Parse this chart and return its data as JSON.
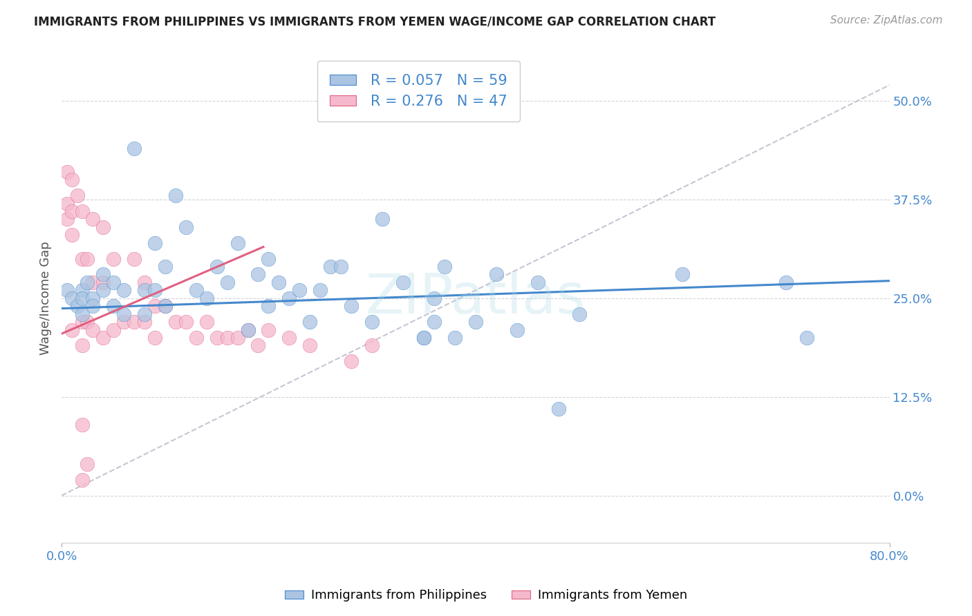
{
  "title": "IMMIGRANTS FROM PHILIPPINES VS IMMIGRANTS FROM YEMEN WAGE/INCOME GAP CORRELATION CHART",
  "source": "Source: ZipAtlas.com",
  "ylabel": "Wage/Income Gap",
  "watermark": "ZIPatlas",
  "R_philippines": 0.057,
  "N_philippines": 59,
  "R_yemen": 0.276,
  "N_yemen": 47,
  "color_philippines": "#aac4e2",
  "color_yemen": "#f5b8cc",
  "line_color_philippines": "#4488cc",
  "line_color_yemen": "#e06080",
  "xlim": [
    0.0,
    0.8
  ],
  "ylim": [
    -0.06,
    0.56
  ],
  "yticks": [
    0.0,
    0.125,
    0.25,
    0.375,
    0.5
  ],
  "ytick_labels": [
    "0.0%",
    "12.5%",
    "25.0%",
    "37.5%",
    "50.0%"
  ],
  "background_color": "#ffffff",
  "grid_color": "#d0d0d8",
  "philippines_x": [
    0.005,
    0.01,
    0.015,
    0.02,
    0.02,
    0.02,
    0.025,
    0.03,
    0.03,
    0.04,
    0.04,
    0.05,
    0.05,
    0.06,
    0.06,
    0.07,
    0.08,
    0.08,
    0.09,
    0.09,
    0.1,
    0.1,
    0.11,
    0.12,
    0.13,
    0.14,
    0.15,
    0.16,
    0.17,
    0.18,
    0.19,
    0.2,
    0.2,
    0.21,
    0.22,
    0.23,
    0.24,
    0.25,
    0.26,
    0.27,
    0.28,
    0.3,
    0.31,
    0.33,
    0.35,
    0.36,
    0.37,
    0.38,
    0.4,
    0.42,
    0.44,
    0.46,
    0.48,
    0.5,
    0.35,
    0.36,
    0.6,
    0.7,
    0.72
  ],
  "philippines_y": [
    0.26,
    0.25,
    0.24,
    0.23,
    0.26,
    0.25,
    0.27,
    0.25,
    0.24,
    0.28,
    0.26,
    0.27,
    0.24,
    0.26,
    0.23,
    0.44,
    0.26,
    0.23,
    0.32,
    0.26,
    0.29,
    0.24,
    0.38,
    0.34,
    0.26,
    0.25,
    0.29,
    0.27,
    0.32,
    0.21,
    0.28,
    0.3,
    0.24,
    0.27,
    0.25,
    0.26,
    0.22,
    0.26,
    0.29,
    0.29,
    0.24,
    0.22,
    0.35,
    0.27,
    0.2,
    0.25,
    0.29,
    0.2,
    0.22,
    0.28,
    0.21,
    0.27,
    0.11,
    0.23,
    0.2,
    0.22,
    0.28,
    0.27,
    0.2
  ],
  "yemen_x": [
    0.005,
    0.005,
    0.005,
    0.01,
    0.01,
    0.01,
    0.01,
    0.015,
    0.02,
    0.02,
    0.02,
    0.02,
    0.025,
    0.025,
    0.03,
    0.03,
    0.03,
    0.04,
    0.04,
    0.04,
    0.05,
    0.05,
    0.06,
    0.07,
    0.07,
    0.08,
    0.08,
    0.09,
    0.09,
    0.1,
    0.11,
    0.12,
    0.13,
    0.14,
    0.15,
    0.16,
    0.17,
    0.18,
    0.19,
    0.2,
    0.22,
    0.24,
    0.28,
    0.3,
    0.02,
    0.02,
    0.025
  ],
  "yemen_y": [
    0.41,
    0.37,
    0.35,
    0.4,
    0.36,
    0.33,
    0.21,
    0.38,
    0.36,
    0.3,
    0.22,
    0.19,
    0.3,
    0.22,
    0.35,
    0.27,
    0.21,
    0.34,
    0.27,
    0.2,
    0.3,
    0.21,
    0.22,
    0.3,
    0.22,
    0.27,
    0.22,
    0.24,
    0.2,
    0.24,
    0.22,
    0.22,
    0.2,
    0.22,
    0.2,
    0.2,
    0.2,
    0.21,
    0.19,
    0.21,
    0.2,
    0.19,
    0.17,
    0.19,
    0.09,
    0.02,
    0.04
  ],
  "phil_trend_x0": 0.0,
  "phil_trend_y0": 0.237,
  "phil_trend_x1": 0.8,
  "phil_trend_y1": 0.272,
  "yemen_trend_x0": 0.0,
  "yemen_trend_y0": 0.205,
  "yemen_trend_x1": 0.195,
  "yemen_trend_y1": 0.315,
  "dash_trend_x0": 0.0,
  "dash_trend_y0": 0.0,
  "dash_trend_x1": 0.8,
  "dash_trend_y1": 0.52
}
